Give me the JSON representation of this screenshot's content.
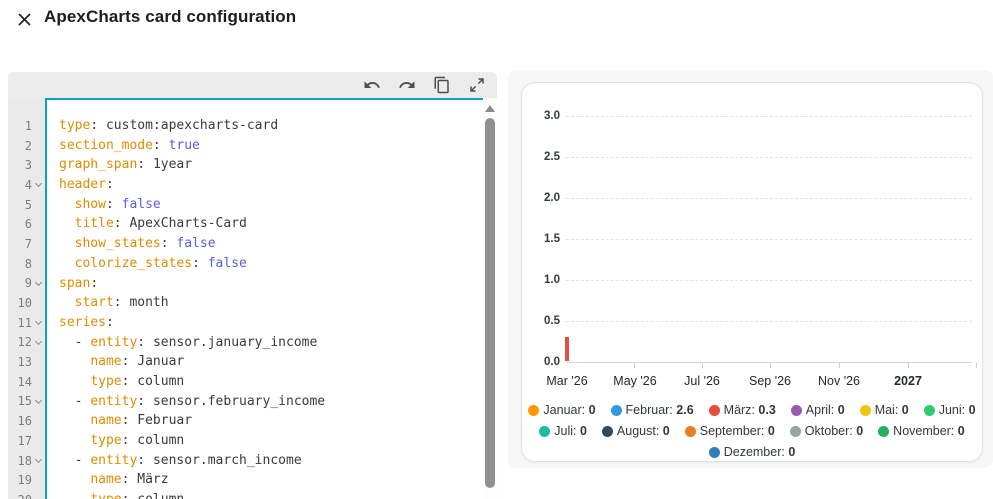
{
  "window": {
    "title": "ApexCharts card configuration"
  },
  "editor": {
    "toolbar_icons": [
      "undo-icon",
      "redo-icon",
      "copy-icon",
      "expand-icon"
    ],
    "syntax_colors": {
      "key": "#e18b00",
      "bool": "#5a5fd8",
      "value": "#3a3a3a",
      "focus_border": "#0aa2c4"
    },
    "lines": [
      {
        "n": 1,
        "fold": false,
        "indent": 0,
        "dash": false,
        "key": "type",
        "value": "custom:apexcharts-card",
        "kind": "plain"
      },
      {
        "n": 2,
        "fold": false,
        "indent": 0,
        "dash": false,
        "key": "section_mode",
        "value": "true",
        "kind": "bool"
      },
      {
        "n": 3,
        "fold": false,
        "indent": 0,
        "dash": false,
        "key": "graph_span",
        "value": "1year",
        "kind": "plain"
      },
      {
        "n": 4,
        "fold": true,
        "indent": 0,
        "dash": false,
        "key": "header",
        "value": null,
        "kind": null
      },
      {
        "n": 5,
        "fold": false,
        "indent": 2,
        "dash": false,
        "key": "show",
        "value": "false",
        "kind": "bool"
      },
      {
        "n": 6,
        "fold": false,
        "indent": 2,
        "dash": false,
        "key": "title",
        "value": "ApexCharts-Card",
        "kind": "plain"
      },
      {
        "n": 7,
        "fold": false,
        "indent": 2,
        "dash": false,
        "key": "show_states",
        "value": "false",
        "kind": "bool"
      },
      {
        "n": 8,
        "fold": false,
        "indent": 2,
        "dash": false,
        "key": "colorize_states",
        "value": "false",
        "kind": "bool"
      },
      {
        "n": 9,
        "fold": true,
        "indent": 0,
        "dash": false,
        "key": "span",
        "value": null,
        "kind": null
      },
      {
        "n": 10,
        "fold": false,
        "indent": 2,
        "dash": false,
        "key": "start",
        "value": "month",
        "kind": "plain"
      },
      {
        "n": 11,
        "fold": true,
        "indent": 0,
        "dash": false,
        "key": "series",
        "value": null,
        "kind": null
      },
      {
        "n": 12,
        "fold": true,
        "indent": 2,
        "dash": true,
        "key": "entity",
        "value": "sensor.january_income",
        "kind": "plain"
      },
      {
        "n": 13,
        "fold": false,
        "indent": 4,
        "dash": false,
        "key": "name",
        "value": "Januar",
        "kind": "plain"
      },
      {
        "n": 14,
        "fold": false,
        "indent": 4,
        "dash": false,
        "key": "type",
        "value": "column",
        "kind": "plain"
      },
      {
        "n": 15,
        "fold": true,
        "indent": 2,
        "dash": true,
        "key": "entity",
        "value": "sensor.february_income",
        "kind": "plain"
      },
      {
        "n": 16,
        "fold": false,
        "indent": 4,
        "dash": false,
        "key": "name",
        "value": "Februar",
        "kind": "plain"
      },
      {
        "n": 17,
        "fold": false,
        "indent": 4,
        "dash": false,
        "key": "type",
        "value": "column",
        "kind": "plain"
      },
      {
        "n": 18,
        "fold": true,
        "indent": 2,
        "dash": true,
        "key": "entity",
        "value": "sensor.march_income",
        "kind": "plain"
      },
      {
        "n": 19,
        "fold": false,
        "indent": 4,
        "dash": false,
        "key": "name",
        "value": "März",
        "kind": "plain"
      },
      {
        "n": 20,
        "fold": false,
        "indent": 4,
        "dash": false,
        "key": "type",
        "value": "column",
        "kind": "plain"
      }
    ]
  },
  "chart_data": {
    "type": "bar",
    "title": "",
    "xlabel": "",
    "ylabel": "",
    "ylim": [
      0,
      3.25
    ],
    "grid": "dashed-horizontal",
    "legend_position": "bottom",
    "yticks": [
      "3.0",
      "2.5",
      "2.0",
      "1.5",
      "1.0",
      "0.5",
      "0.0"
    ],
    "x_tick_labels": [
      {
        "label": "Mar '26",
        "bold": false
      },
      {
        "label": "May '26",
        "bold": false
      },
      {
        "label": "Jul '26",
        "bold": false
      },
      {
        "label": "Sep '26",
        "bold": false
      },
      {
        "label": "Nov '26",
        "bold": false
      },
      {
        "label": "2027",
        "bold": true
      }
    ],
    "series": [
      {
        "name": "Januar",
        "value": "0",
        "color": "#ff9800"
      },
      {
        "name": "Februar",
        "value": "2.6",
        "color": "#3498db"
      },
      {
        "name": "März",
        "value": "0.3",
        "color": "#e74c3c"
      },
      {
        "name": "April",
        "value": "0",
        "color": "#9b59b6"
      },
      {
        "name": "Mai",
        "value": "0",
        "color": "#f1c40f"
      },
      {
        "name": "Juni",
        "value": "0",
        "color": "#2ecc71"
      },
      {
        "name": "Juli",
        "value": "0",
        "color": "#1abc9c"
      },
      {
        "name": "August",
        "value": "0",
        "color": "#34495e"
      },
      {
        "name": "September",
        "value": "0",
        "color": "#e67e22"
      },
      {
        "name": "Oktober",
        "value": "0",
        "color": "#95a5a6"
      },
      {
        "name": "November",
        "value": "0",
        "color": "#27ae60"
      },
      {
        "name": "Dezember",
        "value": "0",
        "color": "#2980b9"
      }
    ],
    "legend_rows": [
      [
        0,
        1,
        2,
        3,
        4,
        5
      ],
      [
        6,
        7,
        8,
        9,
        10
      ],
      [
        11
      ]
    ],
    "visible_bars": [
      {
        "series": "März",
        "value": 0.3,
        "color": "#e74c3c"
      }
    ]
  }
}
